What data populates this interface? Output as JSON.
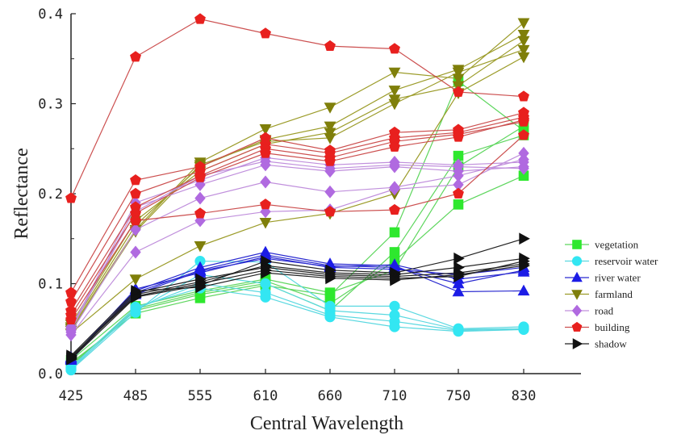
{
  "chart_data": {
    "type": "line",
    "xlabel": "Central Wavelength",
    "ylabel": "Reflectance",
    "categories": [
      "425",
      "485",
      "555",
      "610",
      "660",
      "710",
      "750",
      "830"
    ],
    "ylim": [
      0,
      0.4
    ],
    "yticks": [
      "0.0",
      "0.1",
      "0.2",
      "0.3",
      "0.4"
    ],
    "grid": false,
    "legend_position": "right",
    "series": [
      {
        "name": "vegetation",
        "color": "#2ee82e",
        "line_color": "#5ed65e",
        "marker": "square",
        "lines": [
          [
            0.012,
            0.067,
            0.084,
            0.098,
            0.087,
            0.157,
            0.325,
            0.27
          ],
          [
            0.01,
            0.07,
            0.088,
            0.1,
            0.07,
            0.135,
            0.242,
            0.265
          ],
          [
            0.008,
            0.072,
            0.09,
            0.103,
            0.078,
            0.125,
            0.188,
            0.22
          ],
          [
            0.015,
            0.075,
            0.092,
            0.105,
            0.09,
            0.115,
            0.23,
            0.275
          ]
        ]
      },
      {
        "name": "reservoir water",
        "color": "#33e6f2",
        "line_color": "#5ad8e0",
        "marker": "circle",
        "lines": [
          [
            0.004,
            0.068,
            0.125,
            0.124,
            0.075,
            0.075,
            0.05,
            0.052
          ],
          [
            0.006,
            0.07,
            0.11,
            0.1,
            0.07,
            0.065,
            0.049,
            0.05
          ],
          [
            0.005,
            0.072,
            0.1,
            0.09,
            0.065,
            0.058,
            0.048,
            0.05
          ],
          [
            0.007,
            0.074,
            0.095,
            0.085,
            0.063,
            0.052,
            0.047,
            0.049
          ]
        ]
      },
      {
        "name": "river water",
        "color": "#1c1ce6",
        "line_color": "#2a2ad0",
        "marker": "triangle-up",
        "lines": [
          [
            0.015,
            0.092,
            0.118,
            0.135,
            0.122,
            0.12,
            0.091,
            0.092
          ],
          [
            0.016,
            0.09,
            0.115,
            0.132,
            0.12,
            0.118,
            0.1,
            0.115
          ],
          [
            0.017,
            0.094,
            0.112,
            0.13,
            0.118,
            0.116,
            0.11,
            0.118
          ],
          [
            0.018,
            0.088,
            0.114,
            0.128,
            0.119,
            0.121,
            0.105,
            0.113
          ]
        ]
      },
      {
        "name": "farmland",
        "color": "#7f7f0a",
        "line_color": "#9c9c2a",
        "marker": "triangle-down",
        "lines": [
          [
            0.045,
            0.105,
            0.142,
            0.168,
            0.178,
            0.2,
            0.312,
            0.352
          ],
          [
            0.05,
            0.16,
            0.235,
            0.272,
            0.296,
            0.335,
            0.328,
            0.39
          ],
          [
            0.052,
            0.165,
            0.23,
            0.26,
            0.275,
            0.315,
            0.338,
            0.377
          ],
          [
            0.055,
            0.17,
            0.225,
            0.255,
            0.268,
            0.305,
            0.32,
            0.37
          ],
          [
            0.048,
            0.158,
            0.232,
            0.258,
            0.262,
            0.3,
            0.335,
            0.36
          ]
        ]
      },
      {
        "name": "road",
        "color": "#b06ae0",
        "line_color": "#c08fdc",
        "marker": "diamond",
        "lines": [
          [
            0.043,
            0.135,
            0.17,
            0.18,
            0.182,
            0.205,
            0.21,
            0.245
          ],
          [
            0.046,
            0.16,
            0.195,
            0.213,
            0.202,
            0.207,
            0.22,
            0.238
          ],
          [
            0.048,
            0.185,
            0.21,
            0.232,
            0.225,
            0.23,
            0.225,
            0.23
          ],
          [
            0.05,
            0.19,
            0.215,
            0.24,
            0.232,
            0.235,
            0.232,
            0.235
          ],
          [
            0.052,
            0.18,
            0.22,
            0.236,
            0.228,
            0.232,
            0.23,
            0.228
          ]
        ]
      },
      {
        "name": "building",
        "color": "#e8201e",
        "line_color": "#cc5050",
        "marker": "pentagon",
        "lines": [
          [
            0.195,
            0.352,
            0.394,
            0.378,
            0.364,
            0.361,
            0.313,
            0.308
          ],
          [
            0.09,
            0.215,
            0.23,
            0.262,
            0.248,
            0.268,
            0.271,
            0.29
          ],
          [
            0.08,
            0.2,
            0.225,
            0.255,
            0.245,
            0.262,
            0.268,
            0.285
          ],
          [
            0.07,
            0.185,
            0.22,
            0.25,
            0.24,
            0.258,
            0.266,
            0.28
          ],
          [
            0.065,
            0.178,
            0.218,
            0.245,
            0.236,
            0.252,
            0.263,
            0.282
          ],
          [
            0.06,
            0.17,
            0.178,
            0.188,
            0.18,
            0.182,
            0.2,
            0.265
          ]
        ]
      },
      {
        "name": "shadow",
        "color": "#111111",
        "line_color": "#222222",
        "marker": "triangle-right",
        "lines": [
          [
            0.016,
            0.085,
            0.098,
            0.125,
            0.115,
            0.112,
            0.128,
            0.15
          ],
          [
            0.017,
            0.088,
            0.102,
            0.12,
            0.112,
            0.11,
            0.118,
            0.128
          ],
          [
            0.018,
            0.09,
            0.105,
            0.118,
            0.11,
            0.108,
            0.112,
            0.122
          ],
          [
            0.019,
            0.086,
            0.1,
            0.115,
            0.108,
            0.106,
            0.108,
            0.125
          ],
          [
            0.02,
            0.092,
            0.096,
            0.112,
            0.106,
            0.104,
            0.11,
            0.12
          ]
        ]
      }
    ]
  }
}
